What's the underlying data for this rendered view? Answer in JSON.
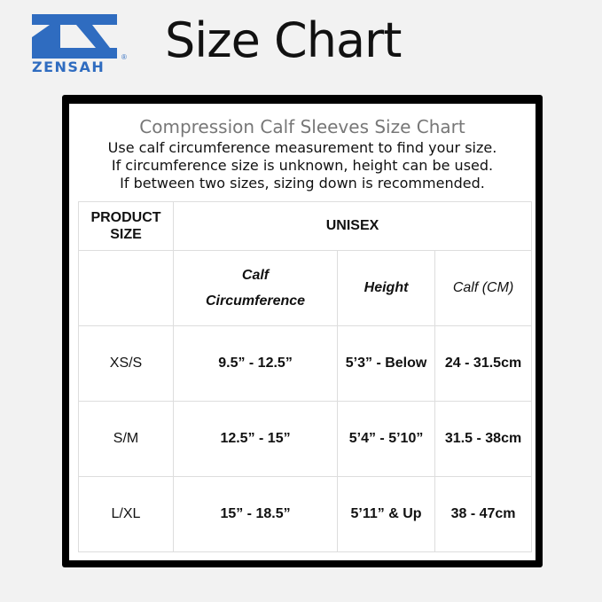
{
  "brand": {
    "name": "ZENSAH",
    "color": "#2f6cc0"
  },
  "title": "Size Chart",
  "chart": {
    "subtitle": "Compression Calf Sleeves Size Chart",
    "notes": [
      "Use calf circumference measurement to find your size.",
      "If circumference size is unknown, height can be used.",
      "If between two sizes, sizing down is recommended."
    ],
    "header": {
      "product_size": "PRODUCT SIZE",
      "group": "UNISEX"
    },
    "columns": [
      "Calf Circumference",
      "Height",
      "Calf (CM)"
    ],
    "rows": [
      {
        "size": "XS/S",
        "calf": "9.5” - 12.5”",
        "height": "5’3” - Below",
        "cm": "24 - 31.5cm"
      },
      {
        "size": "S/M",
        "calf": "12.5” - 15”",
        "height": "5’4” - 5’10”",
        "cm": "31.5 - 38cm"
      },
      {
        "size": "L/XL",
        "calf": "15” - 18.5”",
        "height": "5’11” & Up",
        "cm": "38 - 47cm"
      }
    ]
  }
}
